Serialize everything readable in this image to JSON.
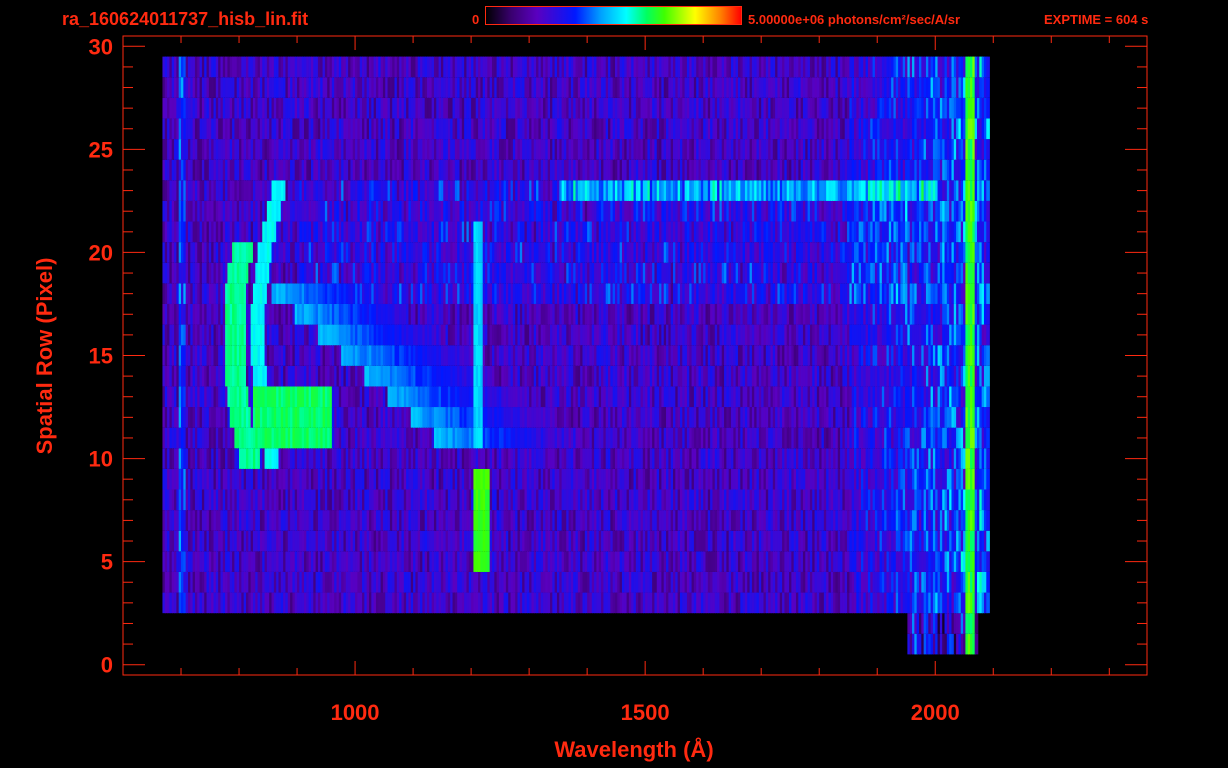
{
  "header": {
    "file_title": "ra_160624011737_hisb_lin.fit",
    "colorbar_min": "0",
    "colorbar_max": "5.00000e+06 photons/cm²/sec/A/sr",
    "exptime": "EXPTIME = 604 s"
  },
  "chart_data": {
    "type": "heatmap",
    "title": "ra_160624011737_hisb_lin.fit",
    "xlabel": "Wavelength (Å)",
    "ylabel": "Spatial Row (Pixel)",
    "xlim": [
      600,
      2365
    ],
    "ylim": [
      -0.5,
      30.5
    ],
    "x_ticks": [
      1000,
      1500,
      2000
    ],
    "y_ticks": [
      0,
      5,
      10,
      15,
      20,
      25,
      30
    ],
    "colorbar": {
      "min": 0,
      "max": 5000000,
      "units": "photons/cm²/sec/A/sr"
    },
    "colormap": "rainbow",
    "features": [
      {
        "label": "crescent-arc",
        "x_range": [
          780,
          900
        ],
        "y_range": [
          10,
          21
        ],
        "intensity": 0.62
      },
      {
        "label": "arc-1216-upper",
        "x": 1210,
        "y_range": [
          11,
          22
        ],
        "intensity": 0.5
      },
      {
        "label": "lyman-alpha-lower",
        "x": 1216,
        "y_range": [
          5,
          10
        ],
        "intensity": 0.68
      },
      {
        "label": "edge-band",
        "x": 2055,
        "y_range": [
          0.5,
          30
        ],
        "intensity": 0.7
      }
    ]
  },
  "colors": {
    "text": "#ff2a10",
    "background": "#000000"
  }
}
